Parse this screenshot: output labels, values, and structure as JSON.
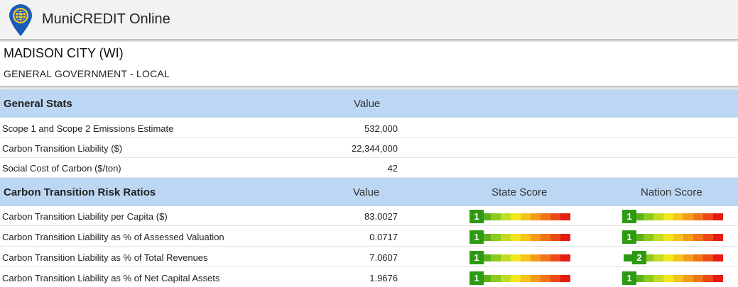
{
  "app": {
    "title": "MuniCREDIT Online",
    "logo_icon": "map-pin-globe-icon"
  },
  "entity": {
    "name": "MADISON CITY (WI)",
    "type": "GENERAL GOVERNMENT - LOCAL"
  },
  "general_stats": {
    "title": "General Stats",
    "value_header": "Value",
    "rows": [
      {
        "label": "Scope 1 and Scope 2 Emissions Estimate",
        "value": "532,000"
      },
      {
        "label": "Carbon Transition Liability ($)",
        "value": "22,344,000"
      },
      {
        "label": "Social Cost of Carbon ($/ton)",
        "value": "42"
      }
    ]
  },
  "risk_ratios": {
    "title": "Carbon Transition Risk Ratios",
    "value_header": "Value",
    "state_header": "State Score",
    "nation_header": "Nation Score",
    "scale_colors": [
      "#2e9a12",
      "#5cb318",
      "#8ccb1e",
      "#c3dc22",
      "#f2e61d",
      "#f6c21c",
      "#f59b1a",
      "#f2741a",
      "#ee4a17",
      "#e61b14"
    ],
    "rows": [
      {
        "label": "Carbon Transition Liability per Capita ($)",
        "value": "83.0027",
        "state_score": "1",
        "nation_score": "1"
      },
      {
        "label": "Carbon Transition Liability as % of Assessed Valuation",
        "value": "0.0717",
        "state_score": "1",
        "nation_score": "1"
      },
      {
        "label": "Carbon Transition Liability as % of Total Revenues",
        "value": "7.0607",
        "state_score": "1",
        "nation_score": "2"
      },
      {
        "label": "Carbon Transition Liability as % of Net Capital Assets",
        "value": "1.9676",
        "state_score": "1",
        "nation_score": "1"
      }
    ]
  }
}
